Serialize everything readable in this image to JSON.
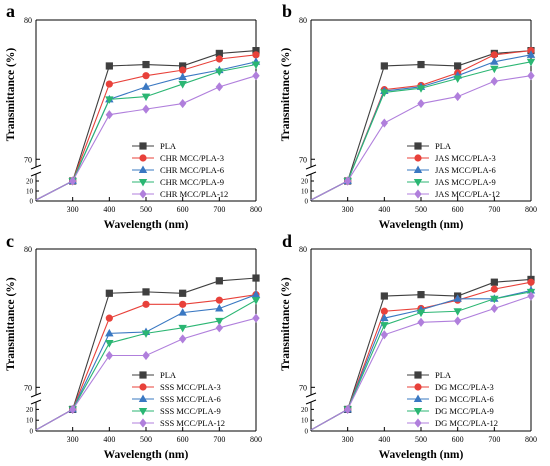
{
  "chart_data": [
    {
      "panel": "a",
      "type": "line",
      "xlabel": "Wavelength (nm)",
      "ylabel": "Transmittance (%)",
      "x": [
        200,
        300,
        400,
        500,
        600,
        700,
        800
      ],
      "x_ticks": [
        "300",
        "400",
        "500",
        "600",
        "700",
        "800"
      ],
      "y_ticks_upper": [
        "70",
        "80"
      ],
      "y_ticks_lower": [
        "0",
        "10",
        "20"
      ],
      "series": [
        {
          "name": "PLA",
          "color": "#3f3f3f",
          "marker": "square",
          "values": [
            1,
            20,
            76.7,
            76.8,
            76.7,
            77.6,
            77.8
          ]
        },
        {
          "name": "CHR MCC/PLA-3",
          "color": "#e8413a",
          "marker": "circle",
          "values": [
            1,
            20,
            75.4,
            76.0,
            76.4,
            77.2,
            77.5
          ]
        },
        {
          "name": "CHR MCC/PLA-6",
          "color": "#3a78c2",
          "marker": "triangle-up",
          "values": [
            1,
            20,
            74.3,
            75.2,
            75.9,
            76.4,
            77.0
          ]
        },
        {
          "name": "CHR MCC/PLA-9",
          "color": "#2bb673",
          "marker": "triangle-down",
          "values": [
            1,
            20,
            74.3,
            74.5,
            75.4,
            76.3,
            76.8
          ]
        },
        {
          "name": "CHR MCC/PLA-12",
          "color": "#b07fdc",
          "marker": "diamond",
          "values": [
            1,
            20,
            73.2,
            73.6,
            74.0,
            75.2,
            76.0
          ]
        }
      ]
    },
    {
      "panel": "b",
      "type": "line",
      "xlabel": "Wavelength (nm)",
      "ylabel": "Transmittance (%)",
      "x": [
        200,
        300,
        400,
        500,
        600,
        700,
        800
      ],
      "x_ticks": [
        "300",
        "400",
        "500",
        "600",
        "700",
        "800"
      ],
      "y_ticks_upper": [
        "70",
        "80"
      ],
      "y_ticks_lower": [
        "0",
        "10",
        "20"
      ],
      "series": [
        {
          "name": "PLA",
          "color": "#3f3f3f",
          "marker": "square",
          "values": [
            1,
            20,
            76.7,
            76.8,
            76.7,
            77.6,
            77.8
          ]
        },
        {
          "name": "JAS MCC/PLA-3",
          "color": "#e8413a",
          "marker": "circle",
          "values": [
            1,
            20,
            75.0,
            75.3,
            76.2,
            77.5,
            77.8
          ]
        },
        {
          "name": "JAS MCC/PLA-6",
          "color": "#3a78c2",
          "marker": "triangle-up",
          "values": [
            1,
            20,
            74.9,
            75.2,
            76.0,
            77.0,
            77.5
          ]
        },
        {
          "name": "JAS MCC/PLA-9",
          "color": "#2bb673",
          "marker": "triangle-down",
          "values": [
            1,
            20,
            74.8,
            75.1,
            75.8,
            76.5,
            77.0
          ]
        },
        {
          "name": "JAS MCC/PLA-12",
          "color": "#b07fdc",
          "marker": "diamond",
          "values": [
            1,
            20,
            72.6,
            74.0,
            74.5,
            75.6,
            76.0
          ]
        }
      ]
    },
    {
      "panel": "c",
      "type": "line",
      "xlabel": "Wavelength (nm)",
      "ylabel": "Transmittance (%)",
      "x": [
        200,
        300,
        400,
        500,
        600,
        700,
        800
      ],
      "x_ticks": [
        "300",
        "400",
        "500",
        "600",
        "700",
        "800"
      ],
      "y_ticks_upper": [
        "70",
        "80"
      ],
      "y_ticks_lower": [
        "0",
        "10",
        "20"
      ],
      "series": [
        {
          "name": "PLA",
          "color": "#3f3f3f",
          "marker": "square",
          "values": [
            1,
            20,
            76.8,
            76.9,
            76.8,
            77.7,
            77.9
          ]
        },
        {
          "name": "SSS MCC/PLA-3",
          "color": "#e8413a",
          "marker": "circle",
          "values": [
            1,
            20,
            75.0,
            76.0,
            76.0,
            76.3,
            76.7
          ]
        },
        {
          "name": "SSS MCC/PLA-6",
          "color": "#3a78c2",
          "marker": "triangle-up",
          "values": [
            1,
            20,
            73.9,
            74.0,
            75.4,
            75.7,
            76.7
          ]
        },
        {
          "name": "SSS MCC/PLA-9",
          "color": "#2bb673",
          "marker": "triangle-down",
          "values": [
            1,
            20,
            73.2,
            73.9,
            74.3,
            74.8,
            76.3
          ]
        },
        {
          "name": "SSS MCC/PLA-12",
          "color": "#b07fdc",
          "marker": "diamond",
          "values": [
            1,
            20,
            72.3,
            72.3,
            73.5,
            74.3,
            75.0
          ]
        }
      ]
    },
    {
      "panel": "d",
      "type": "line",
      "xlabel": "Wavelength (nm)",
      "ylabel": "Transmittance (%)",
      "x": [
        200,
        300,
        400,
        500,
        600,
        700,
        800
      ],
      "x_ticks": [
        "300",
        "400",
        "500",
        "600",
        "700",
        "800"
      ],
      "y_ticks_upper": [
        "70",
        "80"
      ],
      "y_ticks_lower": [
        "0",
        "10",
        "20"
      ],
      "series": [
        {
          "name": "PLA",
          "color": "#3f3f3f",
          "marker": "square",
          "values": [
            1,
            20,
            76.6,
            76.7,
            76.6,
            77.6,
            77.8
          ]
        },
        {
          "name": "DG MCC/PLA-3",
          "color": "#e8413a",
          "marker": "circle",
          "values": [
            1,
            20,
            75.5,
            75.7,
            76.3,
            77.1,
            77.6
          ]
        },
        {
          "name": "DG MCC/PLA-6",
          "color": "#3a78c2",
          "marker": "triangle-up",
          "values": [
            1,
            20,
            75.0,
            75.6,
            76.4,
            76.4,
            77.0
          ]
        },
        {
          "name": "DG MCC/PLA-9",
          "color": "#2bb673",
          "marker": "triangle-down",
          "values": [
            1,
            20,
            74.5,
            75.4,
            75.5,
            76.4,
            76.9
          ]
        },
        {
          "name": "DG MCC/PLA-12",
          "color": "#b07fdc",
          "marker": "diamond",
          "values": [
            1,
            20,
            73.8,
            74.7,
            74.8,
            75.7,
            76.6
          ]
        }
      ]
    }
  ]
}
